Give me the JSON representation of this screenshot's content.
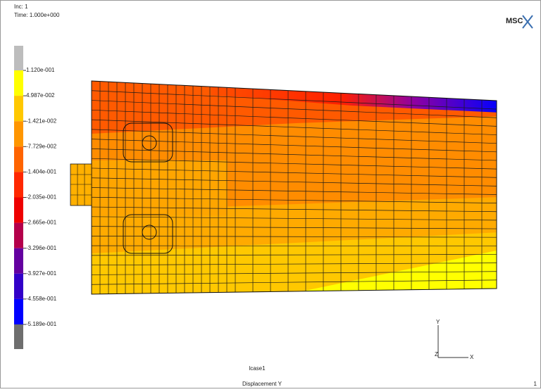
{
  "header": {
    "inc": "Inc:  1",
    "time": "Time:  1.000e+000",
    "logo": "MSC"
  },
  "legend": {
    "labels": [
      "1.120e-001",
      "4.987e-002",
      "-1.421e-002",
      "-7.729e-002",
      "-1.404e-001",
      "-2.035e-001",
      "-2.665e-001",
      "-3.296e-001",
      "-3.927e-001",
      "-4.558e-001",
      "-5.189e-001"
    ]
  },
  "triad": {
    "y": "Y",
    "z": "Z",
    "x": "X"
  },
  "footer": {
    "case": "lcase1",
    "result": "Displacement Y",
    "page": "1"
  }
}
